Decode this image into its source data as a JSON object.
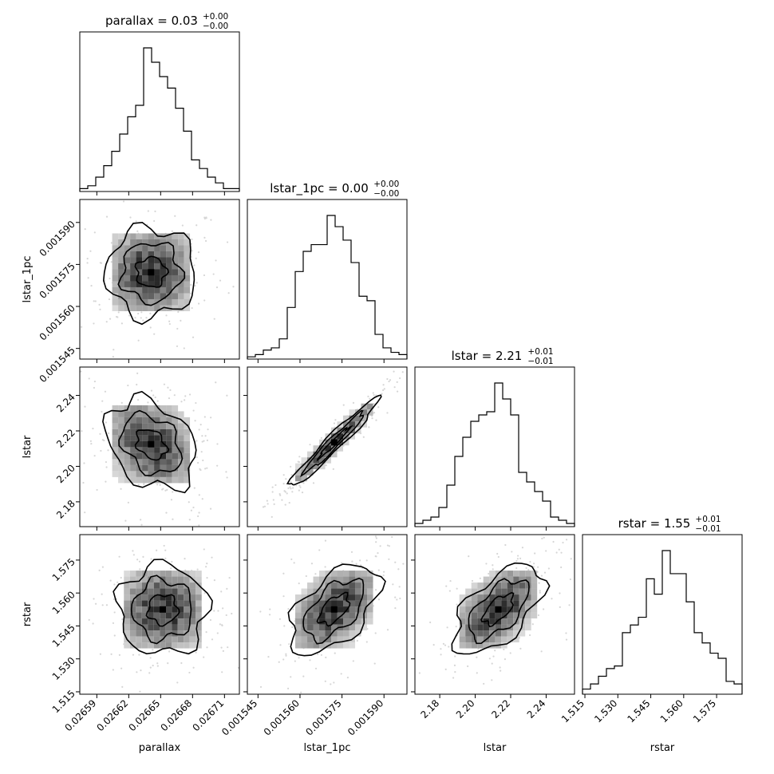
{
  "chart_data": {
    "type": "corner",
    "parameters": [
      "parallax",
      "lstar_1pc",
      "lstar",
      "rstar"
    ],
    "axis_labels": [
      "parallax",
      "lstar_1pc",
      "lstar",
      "rstar"
    ],
    "titles": [
      {
        "name": "parallax",
        "value": "0.03",
        "plus": "+0.00",
        "minus": "−0.00"
      },
      {
        "name": "lstar_1pc",
        "value": "0.00",
        "plus": "+0.00",
        "minus": "−0.00"
      },
      {
        "name": "lstar",
        "value": "2.21",
        "plus": "+0.01",
        "minus": "−0.01"
      },
      {
        "name": "rstar",
        "value": "1.55",
        "plus": "+0.01",
        "minus": "−0.01"
      }
    ],
    "ranges": [
      [
        0.026574,
        0.026724
      ],
      [
        0.0015412,
        0.0015982
      ],
      [
        2.166,
        2.256
      ],
      [
        1.5139,
        1.5866
      ]
    ],
    "ticks": [
      {
        "values": [
          0.02659,
          0.02662,
          0.02665,
          0.02668,
          0.02671
        ],
        "labels": [
          "0.02659",
          "0.02662",
          "0.02665",
          "0.02668",
          "0.02671"
        ]
      },
      {
        "values": [
          0.001545,
          0.00156,
          0.001575,
          0.00159
        ],
        "labels": [
          "0.001545",
          "0.001560",
          "0.001575",
          "0.001590"
        ]
      },
      {
        "values": [
          2.18,
          2.2,
          2.22,
          2.24
        ],
        "labels": [
          "2.18",
          "2.20",
          "2.22",
          "2.24"
        ]
      },
      {
        "values": [
          1.515,
          1.53,
          1.545,
          1.56,
          1.575
        ],
        "labels": [
          "1.515",
          "1.530",
          "1.545",
          "1.560",
          "1.575"
        ]
      }
    ],
    "histograms": [
      {
        "parameter": "parallax",
        "counts": [
          1,
          2,
          5,
          9,
          14,
          20,
          26,
          30,
          50,
          45,
          40,
          36,
          29,
          21,
          11,
          8,
          5,
          3,
          1,
          1
        ]
      },
      {
        "parameter": "lstar_1pc",
        "counts": [
          1,
          2,
          4,
          5,
          9,
          23,
          39,
          48,
          51,
          51,
          64,
          59,
          53,
          43,
          28,
          26,
          11,
          5,
          3,
          2
        ]
      },
      {
        "parameter": "lstar",
        "counts": [
          1,
          2,
          3,
          6,
          13,
          22,
          28,
          33,
          35,
          36,
          45,
          40,
          35,
          17,
          14,
          11,
          8,
          3,
          2,
          1
        ]
      },
      {
        "parameter": "rstar",
        "counts": [
          2,
          4,
          7,
          10,
          11,
          24,
          27,
          30,
          45,
          39,
          56,
          47,
          47,
          36,
          24,
          20,
          16,
          14,
          5,
          4
        ]
      }
    ],
    "joint_centers": [
      {
        "x": "parallax",
        "y": "lstar_1pc",
        "cx": 0.026641,
        "cy": 0.0015722,
        "rho": 0.0
      },
      {
        "x": "parallax",
        "y": "lstar",
        "cx": 0.026641,
        "cy": 2.2125,
        "rho": -0.3
      },
      {
        "x": "lstar_1pc",
        "y": "lstar",
        "cx": 0.0015722,
        "cy": 2.2135,
        "rho": 0.97
      },
      {
        "x": "parallax",
        "y": "rstar",
        "cx": 0.026652,
        "cy": 1.5525,
        "rho": 0.0
      },
      {
        "x": "lstar_1pc",
        "y": "rstar",
        "cx": 0.0015722,
        "cy": 1.5525,
        "rho": 0.55
      },
      {
        "x": "lstar",
        "y": "rstar",
        "cx": 2.213,
        "cy": 1.5525,
        "rho": 0.6
      }
    ],
    "grid": false,
    "legend": "none"
  }
}
